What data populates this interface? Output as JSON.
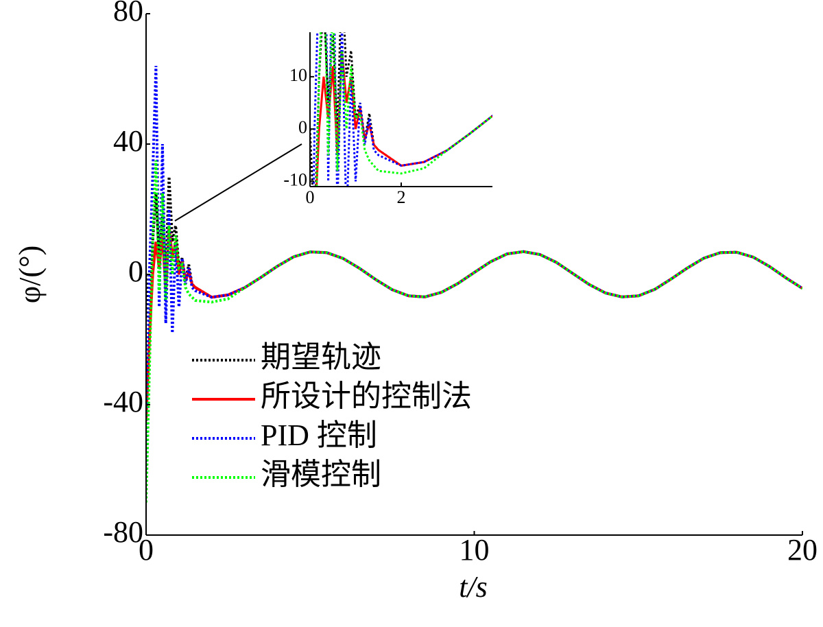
{
  "chart_data": {
    "type": "line",
    "xlabel": "t/s",
    "ylabel": "φ/(°)",
    "x": [
      0,
      0.1,
      0.2,
      0.3,
      0.4,
      0.5,
      0.6,
      0.7,
      0.8,
      0.9,
      1.0,
      1.1,
      1.2,
      1.3,
      1.4,
      1.5,
      2,
      2.5,
      3,
      3.5,
      4,
      4.5,
      5,
      5.5,
      6,
      6.5,
      7,
      7.5,
      8,
      8.5,
      9,
      9.5,
      10,
      10.5,
      11,
      11.5,
      12,
      12.5,
      13,
      13.5,
      14,
      14.5,
      15,
      15.5,
      16,
      16.5,
      17,
      17.5,
      18,
      18.5,
      19,
      19.5,
      20
    ],
    "series": [
      {
        "name": "期望轨迹",
        "color": "#000000",
        "style": "dotted",
        "values": [
          0,
          -20,
          10,
          25,
          5,
          18,
          0,
          30,
          10,
          15,
          2,
          5,
          -2,
          3,
          -3,
          -4,
          -7.0,
          -6.3,
          -4.1,
          -0.9,
          2.5,
          5.4,
          6.9,
          6.7,
          4.9,
          1.9,
          -1.6,
          -4.7,
          -6.6,
          -6.9,
          -5.5,
          -2.8,
          0.6,
          3.9,
          6.3,
          7.0,
          6.1,
          3.7,
          0.3,
          -3.1,
          -5.7,
          -6.9,
          -6.6,
          -4.6,
          -1.4,
          2.0,
          5.0,
          6.7,
          6.8,
          5.3,
          2.4,
          -1.1,
          -4.3
        ]
      },
      {
        "name": "所设计的控制法",
        "color": "#ff0000",
        "style": "solid",
        "values": [
          -45,
          -20,
          0,
          10,
          2,
          12,
          -5,
          15,
          5,
          10,
          0,
          4,
          -2,
          1,
          -3,
          -4,
          -7.0,
          -6.3,
          -4.1,
          -0.9,
          2.5,
          5.4,
          6.9,
          6.7,
          4.9,
          1.9,
          -1.6,
          -4.7,
          -6.6,
          -6.9,
          -5.5,
          -2.8,
          0.6,
          3.9,
          6.3,
          7.0,
          6.1,
          3.7,
          0.3,
          -3.1,
          -5.7,
          -6.9,
          -6.6,
          -4.6,
          -1.4,
          2.0,
          5.0,
          6.7,
          6.8,
          5.3,
          2.4,
          -1.1,
          -4.3
        ]
      },
      {
        "name": "PID 控制",
        "color": "#0000ff",
        "style": "dotted",
        "values": [
          -60,
          0,
          30,
          64,
          -10,
          40,
          -15,
          20,
          -18,
          10,
          -10,
          5,
          -3,
          2,
          -4,
          -5,
          -7.0,
          -6.3,
          -4.1,
          -0.9,
          2.5,
          5.4,
          6.9,
          6.7,
          4.9,
          1.9,
          -1.6,
          -4.7,
          -6.6,
          -6.9,
          -5.5,
          -2.8,
          0.6,
          3.9,
          6.3,
          7.0,
          6.1,
          3.7,
          0.3,
          -3.1,
          -5.7,
          -6.9,
          -6.6,
          -4.6,
          -1.4,
          2.0,
          5.0,
          6.7,
          6.8,
          5.3,
          2.4,
          -1.1,
          -4.3
        ]
      },
      {
        "name": "滑模控制",
        "color": "#00ff00",
        "style": "dotted",
        "values": [
          -70,
          -30,
          10,
          35,
          -5,
          25,
          -8,
          15,
          0,
          12,
          2,
          3,
          -4,
          -6,
          -7,
          -8,
          -8.5,
          -7.5,
          -4.1,
          -0.9,
          2.5,
          5.4,
          6.9,
          6.7,
          4.9,
          1.9,
          -1.6,
          -4.7,
          -6.6,
          -6.9,
          -5.5,
          -2.8,
          0.6,
          3.9,
          6.3,
          7.0,
          6.1,
          3.7,
          0.3,
          -3.1,
          -5.7,
          -6.9,
          -6.6,
          -4.6,
          -1.4,
          2.0,
          5.0,
          6.7,
          6.8,
          5.3,
          2.4,
          -1.1,
          -4.3
        ]
      }
    ],
    "xlim": [
      0,
      20
    ],
    "xticks": [
      0,
      10,
      20
    ],
    "ylim": [
      -80,
      80
    ],
    "yticks": [
      -80,
      -40,
      0,
      40,
      80
    ],
    "inset": {
      "xlim": [
        0,
        4
      ],
      "xticks": [
        0,
        2
      ],
      "ylim": [
        -11,
        18.5
      ],
      "yticks": [
        -10,
        0,
        10
      ]
    }
  }
}
